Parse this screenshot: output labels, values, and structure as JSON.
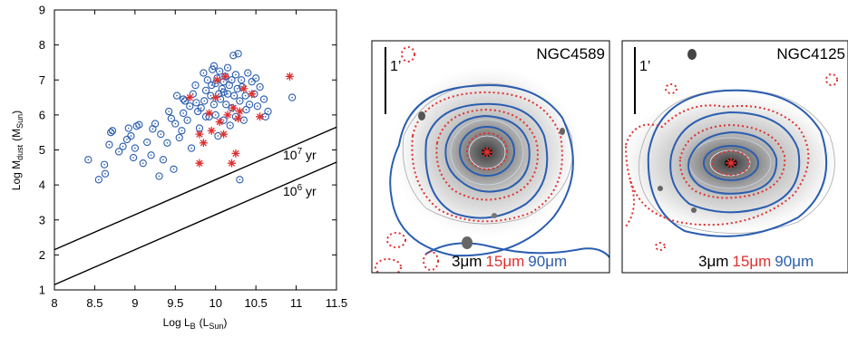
{
  "chart_data": [
    {
      "type": "scatter",
      "title": "",
      "xlabel": "Log L",
      "xlabel_sub": "B",
      "xlabel_unit": "(L",
      "xlabel_unit_sub": "Sun",
      "xlabel_close": ")",
      "ylabel": "Log M",
      "ylabel_sub": "dust",
      "ylabel_unit": "(M",
      "ylabel_unit_sub": "Sun",
      "ylabel_close": ")",
      "xlim": [
        8,
        11.5
      ],
      "ylim": [
        1,
        9
      ],
      "x_ticks": [
        8,
        8.5,
        9,
        9.5,
        10,
        10.5,
        11,
        11.5
      ],
      "x_tick_labels": [
        "8",
        "8.5",
        "9",
        "9.5",
        "10",
        "10.5",
        "11",
        "11.5"
      ],
      "y_ticks": [
        1,
        2,
        3,
        4,
        5,
        6,
        7,
        8,
        9
      ],
      "y_tick_labels": [
        "1",
        "2",
        "3",
        "4",
        "5",
        "6",
        "7",
        "8",
        "9"
      ],
      "colors": {
        "circles": "#2a5db0",
        "stars": "#e03030",
        "lines": "#000000"
      },
      "lines": [
        {
          "label_base": "10",
          "label_exp": "7",
          "label_unit": " yr",
          "x": [
            8,
            11.5
          ],
          "y": [
            2.15,
            5.65
          ]
        },
        {
          "label_base": "10",
          "label_exp": "6",
          "label_unit": " yr",
          "x": [
            8,
            11.5
          ],
          "y": [
            1.15,
            4.65
          ]
        }
      ],
      "series": [
        {
          "marker": "circle-dot",
          "points": [
            [
              8.42,
              4.72
            ],
            [
              8.55,
              4.15
            ],
            [
              8.62,
              4.58
            ],
            [
              8.63,
              4.32
            ],
            [
              8.68,
              5.15
            ],
            [
              8.7,
              5.5
            ],
            [
              8.72,
              5.55
            ],
            [
              8.8,
              4.95
            ],
            [
              8.85,
              5.1
            ],
            [
              8.9,
              5.3
            ],
            [
              8.92,
              5.62
            ],
            [
              8.95,
              5.4
            ],
            [
              8.98,
              4.78
            ],
            [
              9.0,
              5.05
            ],
            [
              9.02,
              5.68
            ],
            [
              9.05,
              5.72
            ],
            [
              9.1,
              4.62
            ],
            [
              9.15,
              5.22
            ],
            [
              9.2,
              4.85
            ],
            [
              9.22,
              5.6
            ],
            [
              9.25,
              5.75
            ],
            [
              9.3,
              4.25
            ],
            [
              9.32,
              5.45
            ],
            [
              9.35,
              4.72
            ],
            [
              9.4,
              5.2
            ],
            [
              9.42,
              6.1
            ],
            [
              9.45,
              5.9
            ],
            [
              9.48,
              4.45
            ],
            [
              9.5,
              5.75
            ],
            [
              9.52,
              6.55
            ],
            [
              9.55,
              5.35
            ],
            [
              9.58,
              5.55
            ],
            [
              9.6,
              6.05
            ],
            [
              9.62,
              6.4
            ],
            [
              9.65,
              5.85
            ],
            [
              9.68,
              6.25
            ],
            [
              9.7,
              5.05
            ],
            [
              9.72,
              6.6
            ],
            [
              9.75,
              6.85
            ],
            [
              9.78,
              6.1
            ],
            [
              9.8,
              5.62
            ],
            [
              9.82,
              6.2
            ],
            [
              9.85,
              7.2
            ],
            [
              9.86,
              6.4
            ],
            [
              9.88,
              6.7
            ],
            [
              9.9,
              7.0
            ],
            [
              9.92,
              5.95
            ],
            [
              9.94,
              6.55
            ],
            [
              9.95,
              6.85
            ],
            [
              9.96,
              7.3
            ],
            [
              9.98,
              6.3
            ],
            [
              10.0,
              6.9
            ],
            [
              10.0,
              6.0
            ],
            [
              10.02,
              7.05
            ],
            [
              10.03,
              5.4
            ],
            [
              10.04,
              6.6
            ],
            [
              10.05,
              7.25
            ],
            [
              10.06,
              6.45
            ],
            [
              10.08,
              6.75
            ],
            [
              10.1,
              6.95
            ],
            [
              10.1,
              5.85
            ],
            [
              10.12,
              7.1
            ],
            [
              10.13,
              6.3
            ],
            [
              10.15,
              6.6
            ],
            [
              10.15,
              7.35
            ],
            [
              10.17,
              6.85
            ],
            [
              10.18,
              5.7
            ],
            [
              10.2,
              7.0
            ],
            [
              10.2,
              6.2
            ],
            [
              10.22,
              7.7
            ],
            [
              10.23,
              6.55
            ],
            [
              10.25,
              7.15
            ],
            [
              10.25,
              5.95
            ],
            [
              10.27,
              6.75
            ],
            [
              10.28,
              7.75
            ],
            [
              10.3,
              6.4
            ],
            [
              10.3,
              4.15
            ],
            [
              10.32,
              7.0
            ],
            [
              10.33,
              6.8
            ],
            [
              10.35,
              5.85
            ],
            [
              10.37,
              6.55
            ],
            [
              10.4,
              7.2
            ],
            [
              10.42,
              6.3
            ],
            [
              10.45,
              6.95
            ],
            [
              10.48,
              6.6
            ],
            [
              10.5,
              7.05
            ],
            [
              10.52,
              6.25
            ],
            [
              10.55,
              6.8
            ],
            [
              10.6,
              6.45
            ],
            [
              10.62,
              5.95
            ],
            [
              10.65,
              6.1
            ],
            [
              10.95,
              6.5
            ],
            [
              9.6,
              6.45
            ],
            [
              9.98,
              7.4
            ],
            [
              10.1,
              6.65
            ],
            [
              9.88,
              5.95
            ],
            [
              9.76,
              6.35
            ],
            [
              10.38,
              6.15
            ]
          ]
        },
        {
          "marker": "asterisk",
          "points": [
            [
              9.68,
              6.5
            ],
            [
              9.8,
              4.62
            ],
            [
              9.8,
              5.45
            ],
            [
              9.85,
              5.2
            ],
            [
              9.92,
              6.05
            ],
            [
              9.95,
              5.55
            ],
            [
              10.0,
              6.5
            ],
            [
              10.02,
              7.0
            ],
            [
              10.05,
              5.8
            ],
            [
              10.1,
              5.45
            ],
            [
              10.15,
              6.0
            ],
            [
              10.2,
              4.62
            ],
            [
              10.22,
              6.2
            ],
            [
              10.25,
              4.9
            ],
            [
              10.28,
              5.9
            ],
            [
              10.3,
              6.1
            ],
            [
              10.35,
              6.75
            ],
            [
              10.45,
              6.6
            ],
            [
              10.55,
              5.95
            ],
            [
              10.92,
              7.1
            ],
            [
              10.12,
              7.1
            ]
          ]
        }
      ]
    },
    {
      "type": "image",
      "label": "NGC4589",
      "scale_label": "1’",
      "legend": [
        {
          "text": "3μm",
          "color": "#000000"
        },
        {
          "text": "15μm",
          "color": "#e03030"
        },
        {
          "text": "90μm",
          "color": "#2a5db0"
        }
      ]
    },
    {
      "type": "image",
      "label": "NGC4125",
      "scale_label": "1’",
      "legend": [
        {
          "text": "3μm",
          "color": "#000000"
        },
        {
          "text": "15μm",
          "color": "#e03030"
        },
        {
          "text": "90μm",
          "color": "#2a5db0"
        }
      ]
    }
  ]
}
